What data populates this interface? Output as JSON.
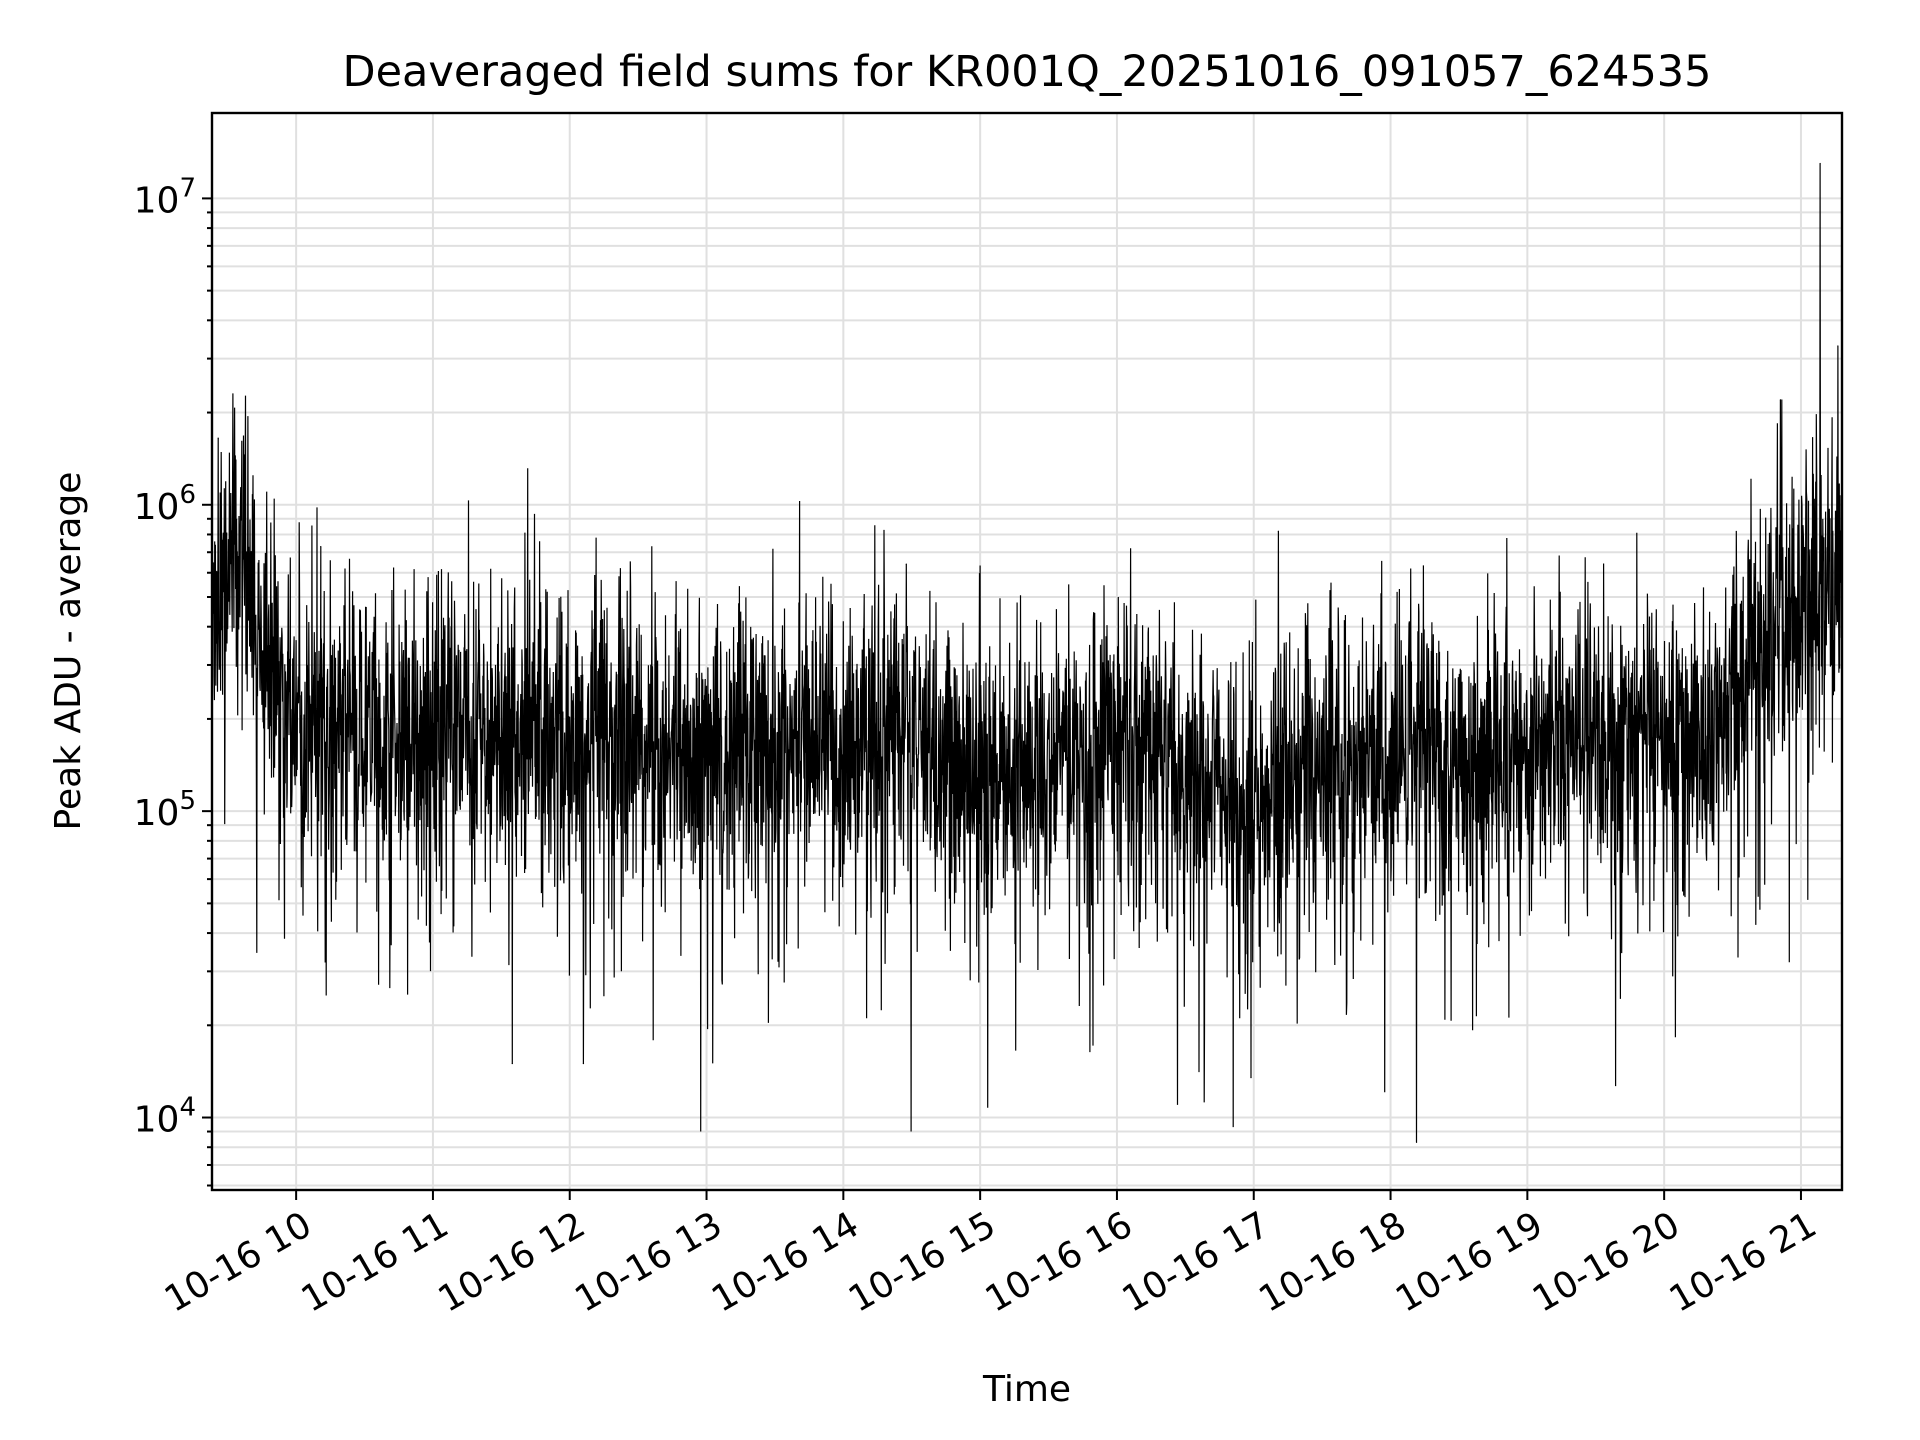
{
  "chart_data": {
    "type": "line",
    "title": "Deaveraged field sums for KR001Q_20251016_091057_624535",
    "xlabel": "Time",
    "ylabel": "Peak ADU - average",
    "yscale": "log",
    "ylim": [
      5800,
      19000000
    ],
    "xlim_hours": [
      9.385,
      21.3
    ],
    "grid": true,
    "line_color": "#000000",
    "grid_color": "#e0e0e0",
    "x_ticks": [
      {
        "hour": 10,
        "label": "10-16 10"
      },
      {
        "hour": 11,
        "label": "10-16 11"
      },
      {
        "hour": 12,
        "label": "10-16 12"
      },
      {
        "hour": 13,
        "label": "10-16 13"
      },
      {
        "hour": 14,
        "label": "10-16 14"
      },
      {
        "hour": 15,
        "label": "10-16 15"
      },
      {
        "hour": 16,
        "label": "10-16 16"
      },
      {
        "hour": 17,
        "label": "10-16 17"
      },
      {
        "hour": 18,
        "label": "10-16 18"
      },
      {
        "hour": 19,
        "label": "10-16 19"
      },
      {
        "hour": 20,
        "label": "10-16 20"
      },
      {
        "hour": 21,
        "label": "10-16 21"
      }
    ],
    "y_ticks": [
      {
        "value": 10000,
        "base": "10",
        "exp": "4"
      },
      {
        "value": 100000,
        "base": "10",
        "exp": "5"
      },
      {
        "value": 1000000,
        "base": "10",
        "exp": "6"
      },
      {
        "value": 10000000,
        "base": "10",
        "exp": "7"
      }
    ],
    "series": [
      {
        "name": "Peak ADU - average",
        "sample_interval_s": 9,
        "baseline_profile": [
          {
            "hour": 9.385,
            "value": 450000
          },
          {
            "hour": 9.6,
            "value": 800000
          },
          {
            "hour": 9.75,
            "value": 350000
          },
          {
            "hour": 9.95,
            "value": 180000
          },
          {
            "hour": 11.2,
            "value": 200000
          },
          {
            "hour": 12.5,
            "value": 170000
          },
          {
            "hour": 14.5,
            "value": 170000
          },
          {
            "hour": 15.4,
            "value": 120000
          },
          {
            "hour": 16.1,
            "value": 190000
          },
          {
            "hour": 16.9,
            "value": 110000
          },
          {
            "hour": 17.8,
            "value": 150000
          },
          {
            "hour": 18.4,
            "value": 150000
          },
          {
            "hour": 19.9,
            "value": 190000
          },
          {
            "hour": 20.25,
            "value": 150000
          },
          {
            "hour": 20.6,
            "value": 300000
          },
          {
            "hour": 20.95,
            "value": 500000
          },
          {
            "hour": 21.3,
            "value": 650000
          }
        ],
        "notable_points": [
          {
            "hour": 9.43,
            "value": 1650000
          },
          {
            "hour": 9.56,
            "value": 1400000
          },
          {
            "hour": 10.18,
            "value": 730000
          },
          {
            "hour": 11.58,
            "value": 15000
          },
          {
            "hour": 12.1,
            "value": 15000
          },
          {
            "hour": 14.46,
            "value": 640000
          },
          {
            "hour": 16.98,
            "value": 13500
          },
          {
            "hour": 17.18,
            "value": 820000
          },
          {
            "hour": 18.19,
            "value": 8300
          },
          {
            "hour": 20.85,
            "value": 2200000
          },
          {
            "hour": 21.14,
            "value": 13000000
          },
          {
            "hour": 21.27,
            "value": 3300000
          }
        ]
      }
    ]
  }
}
